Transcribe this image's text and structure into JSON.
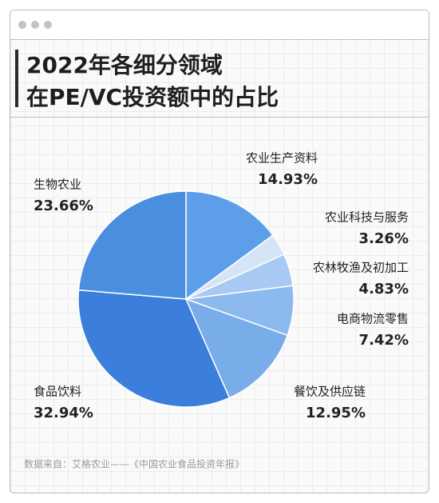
{
  "chart_data": {
    "type": "pie",
    "title": [
      "2022年各细分领域",
      "在PE/VC投资额中的占比"
    ],
    "categories": [
      "农业生产资料",
      "农业科技与服务",
      "农林牧渔及初加工",
      "电商物流零售",
      "餐饮及供应链",
      "食品饮料",
      "生物农业"
    ],
    "values": [
      14.93,
      3.26,
      4.83,
      7.42,
      12.95,
      32.94,
      23.66
    ],
    "value_labels": [
      "14.93%",
      "3.26%",
      "4.83%",
      "7.42%",
      "12.95%",
      "32.94%",
      "23.66%"
    ],
    "colors": [
      "#5c9ee9",
      "#d5e5f8",
      "#a8caf2",
      "#8cbaee",
      "#79ade9",
      "#3b7edb",
      "#4a8ee0"
    ],
    "source": "数据来自：艾格农业——《中国农业食品投资年报》"
  }
}
